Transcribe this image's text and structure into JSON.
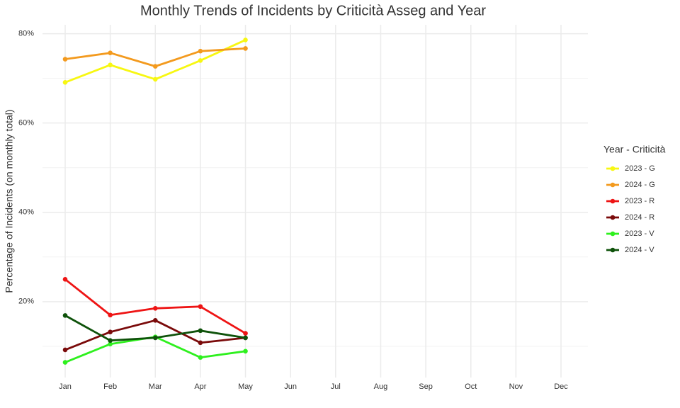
{
  "chart_data": {
    "type": "line",
    "title": "Monthly Trends of Incidents by Criticità Asseg and Year",
    "y_label": "Percentage of Incidents (on monthly total)",
    "legend_title": "Year - Criticità",
    "legend_position": "right",
    "grid": true,
    "categories": [
      "Jan",
      "Feb",
      "Mar",
      "Apr",
      "May",
      "Jun",
      "Jul",
      "Aug",
      "Sep",
      "Oct",
      "Nov",
      "Dec"
    ],
    "ylim": [
      3,
      82
    ],
    "yticks": [
      {
        "value": 20,
        "label": "20%"
      },
      {
        "value": 40,
        "label": "40%"
      },
      {
        "value": 60,
        "label": "60%"
      },
      {
        "value": 80,
        "label": "80%"
      }
    ],
    "minor_yticks": [
      10,
      30,
      50,
      70
    ],
    "series": [
      {
        "name": "2023 - G",
        "color": "#f7f712",
        "values": [
          69.1,
          73.0,
          69.8,
          74.0,
          78.6,
          null,
          null,
          null,
          null,
          null,
          null,
          null
        ]
      },
      {
        "name": "2024 - G",
        "color": "#f39a1e",
        "values": [
          74.3,
          75.7,
          72.7,
          76.1,
          76.7,
          null,
          null,
          null,
          null,
          null,
          null,
          null
        ]
      },
      {
        "name": "2023 - R",
        "color": "#ee1414",
        "values": [
          25.0,
          17.0,
          18.5,
          18.9,
          12.9,
          null,
          null,
          null,
          null,
          null,
          null,
          null
        ]
      },
      {
        "name": "2024 - R",
        "color": "#7a0a0a",
        "values": [
          9.2,
          13.2,
          15.8,
          10.8,
          11.9,
          null,
          null,
          null,
          null,
          null,
          null,
          null
        ]
      },
      {
        "name": "2023 - V",
        "color": "#2ef01e",
        "values": [
          6.4,
          10.5,
          12.1,
          7.5,
          8.9,
          null,
          null,
          null,
          null,
          null,
          null,
          null
        ]
      },
      {
        "name": "2024 - V",
        "color": "#0e520a",
        "values": [
          16.9,
          11.3,
          11.9,
          13.5,
          11.9,
          null,
          null,
          null,
          null,
          null,
          null,
          null
        ]
      }
    ]
  }
}
